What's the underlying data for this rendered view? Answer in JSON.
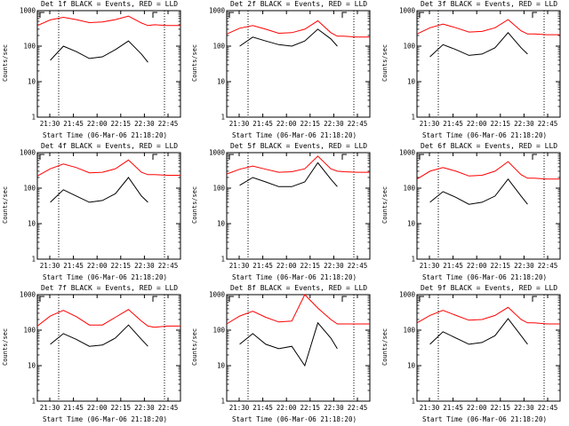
{
  "chart_data": [
    {
      "type": "line",
      "title": "Det 1f BLACK = Events, RED = LLD",
      "xlabel": "Start Time (06-Mar-06 21:18:20)",
      "ylabel": "Counts/sec",
      "x_ticks": [
        "21:30",
        "21:45",
        "22:00",
        "22:15",
        "22:30",
        "22:45"
      ],
      "y_ticks": [
        "1",
        "10",
        "100",
        "1000"
      ],
      "y_scale": "log",
      "ylim": [
        1,
        1000
      ],
      "x": [
        0,
        10,
        20,
        30,
        40,
        50,
        60,
        70,
        80,
        85,
        90,
        100,
        110
      ],
      "series": [
        {
          "name": "BLACK = Events",
          "values": [
            null,
            40,
            100,
            70,
            45,
            50,
            80,
            140,
            60,
            35,
            null,
            null,
            null
          ]
        },
        {
          "name": "RED = LLD",
          "values": [
            380,
            550,
            650,
            560,
            460,
            480,
            560,
            700,
            450,
            380,
            400,
            380,
            380
          ]
        }
      ]
    },
    {
      "type": "line",
      "title": "Det 2f BLACK = Events, RED = LLD",
      "xlabel": "Start Time (06-Mar-06 21:18:20)",
      "ylabel": "Counts/sec",
      "x_ticks": [
        "21:30",
        "21:45",
        "22:00",
        "22:15",
        "22:30",
        "22:45"
      ],
      "y_ticks": [
        "1",
        "10",
        "100",
        "1000"
      ],
      "y_scale": "log",
      "ylim": [
        1,
        1000
      ],
      "x": [
        0,
        10,
        20,
        30,
        40,
        50,
        60,
        70,
        80,
        85,
        90,
        100,
        110
      ],
      "series": [
        {
          "name": "BLACK = Events",
          "values": [
            null,
            100,
            180,
            140,
            110,
            100,
            140,
            300,
            160,
            100,
            null,
            null,
            null
          ]
        },
        {
          "name": "RED = LLD",
          "values": [
            220,
            320,
            380,
            300,
            230,
            240,
            300,
            520,
            240,
            190,
            190,
            180,
            180
          ]
        }
      ]
    },
    {
      "type": "line",
      "title": "Det 3f BLACK = Events, RED = LLD",
      "xlabel": "Start Time (06-Mar-06 21:18:20)",
      "ylabel": "Counts/sec",
      "x_ticks": [
        "21:30",
        "21:45",
        "22:00",
        "22:15",
        "22:30",
        "22:45"
      ],
      "y_ticks": [
        "1",
        "10",
        "100",
        "1000"
      ],
      "y_scale": "log",
      "ylim": [
        1,
        1000
      ],
      "x": [
        0,
        10,
        20,
        30,
        40,
        50,
        60,
        70,
        80,
        85,
        90,
        100,
        110
      ],
      "series": [
        {
          "name": "BLACK = Events",
          "values": [
            null,
            50,
            110,
            80,
            55,
            60,
            90,
            240,
            90,
            60,
            null,
            null,
            null
          ]
        },
        {
          "name": "RED = LLD",
          "values": [
            220,
            330,
            420,
            330,
            250,
            260,
            330,
            560,
            270,
            220,
            220,
            210,
            210
          ]
        }
      ]
    },
    {
      "type": "line",
      "title": "Det 4f BLACK = Events, RED = LLD",
      "xlabel": "Start Time (06-Mar-06 21:18:20)",
      "ylabel": "Counts/sec",
      "x_ticks": [
        "21:30",
        "21:45",
        "22:00",
        "22:15",
        "22:30",
        "22:45"
      ],
      "y_ticks": [
        "1",
        "10",
        "100",
        "1000"
      ],
      "y_scale": "log",
      "ylim": [
        1,
        1000
      ],
      "x": [
        0,
        10,
        20,
        30,
        40,
        50,
        60,
        70,
        80,
        85,
        90,
        100,
        110
      ],
      "series": [
        {
          "name": "BLACK = Events",
          "values": [
            null,
            40,
            90,
            60,
            40,
            45,
            70,
            200,
            60,
            40,
            null,
            null,
            null
          ]
        },
        {
          "name": "RED = LLD",
          "values": [
            220,
            350,
            480,
            380,
            270,
            280,
            350,
            620,
            280,
            240,
            240,
            230,
            230
          ]
        }
      ]
    },
    {
      "type": "line",
      "title": "Det 5f BLACK = Events, RED = LLD",
      "xlabel": "Start Time (06-Mar-06 21:18:20)",
      "ylabel": "Counts/sec",
      "x_ticks": [
        "21:30",
        "21:45",
        "22:00",
        "22:15",
        "22:30",
        "22:45"
      ],
      "y_ticks": [
        "1",
        "10",
        "100",
        "1000"
      ],
      "y_scale": "log",
      "ylim": [
        1,
        1000
      ],
      "x": [
        0,
        10,
        20,
        30,
        40,
        50,
        60,
        70,
        80,
        85,
        90,
        100,
        110
      ],
      "series": [
        {
          "name": "BLACK = Events",
          "values": [
            null,
            120,
            200,
            150,
            110,
            110,
            150,
            520,
            180,
            110,
            null,
            null,
            null
          ]
        },
        {
          "name": "RED = LLD",
          "values": [
            250,
            340,
            420,
            340,
            280,
            290,
            350,
            800,
            350,
            300,
            290,
            280,
            280
          ]
        }
      ]
    },
    {
      "type": "line",
      "title": "Det 6f BLACK = Events, RED = LLD",
      "xlabel": "Start Time (06-Mar-06 21:18:20)",
      "ylabel": "Counts/sec",
      "x_ticks": [
        "21:30",
        "21:45",
        "22:00",
        "22:15",
        "22:30",
        "22:45"
      ],
      "y_ticks": [
        "1",
        "10",
        "100",
        "1000"
      ],
      "y_scale": "log",
      "ylim": [
        1,
        1000
      ],
      "x": [
        0,
        10,
        20,
        30,
        40,
        50,
        60,
        70,
        80,
        85,
        90,
        100,
        110
      ],
      "series": [
        {
          "name": "BLACK = Events",
          "values": [
            null,
            40,
            80,
            55,
            35,
            40,
            60,
            180,
            60,
            35,
            null,
            null,
            null
          ]
        },
        {
          "name": "RED = LLD",
          "values": [
            180,
            300,
            380,
            300,
            220,
            230,
            300,
            560,
            240,
            190,
            190,
            180,
            180
          ]
        }
      ]
    },
    {
      "type": "line",
      "title": "Det 7f BLACK = Events, RED = LLD",
      "xlabel": "Start Time (06-Mar-06 21:18:20)",
      "ylabel": "Counts/sec",
      "x_ticks": [
        "21:30",
        "21:45",
        "22:00",
        "22:15",
        "22:30",
        "22:45"
      ],
      "y_ticks": [
        "1",
        "10",
        "100",
        "1000"
      ],
      "y_scale": "log",
      "ylim": [
        1,
        1000
      ],
      "x": [
        0,
        10,
        20,
        30,
        40,
        50,
        60,
        70,
        80,
        85,
        90,
        100,
        110
      ],
      "series": [
        {
          "name": "BLACK = Events",
          "values": [
            null,
            40,
            80,
            55,
            35,
            38,
            60,
            140,
            55,
            35,
            null,
            null,
            null
          ]
        },
        {
          "name": "RED = LLD",
          "values": [
            130,
            250,
            360,
            240,
            140,
            140,
            230,
            380,
            180,
            130,
            120,
            130,
            130
          ]
        }
      ]
    },
    {
      "type": "line",
      "title": "Det 8f BLACK = Events, RED = LLD",
      "xlabel": "Start Time (06-Mar-06 21:18:20)",
      "ylabel": "Counts/sec",
      "x_ticks": [
        "21:30",
        "21:45",
        "22:00",
        "22:15",
        "22:30",
        "22:45"
      ],
      "y_ticks": [
        "1",
        "10",
        "100",
        "1000"
      ],
      "y_scale": "log",
      "ylim": [
        1,
        1000
      ],
      "x": [
        0,
        10,
        20,
        30,
        40,
        50,
        60,
        70,
        80,
        85,
        90,
        100,
        110
      ],
      "series": [
        {
          "name": "BLACK = Events",
          "values": [
            null,
            40,
            80,
            40,
            30,
            35,
            10,
            160,
            60,
            30,
            null,
            null,
            null
          ]
        },
        {
          "name": "RED = LLD",
          "values": [
            150,
            250,
            340,
            230,
            170,
            180,
            1000,
            420,
            200,
            150,
            150,
            150,
            150
          ]
        }
      ]
    },
    {
      "type": "line",
      "title": "Det 9f BLACK = Events, RED = LLD",
      "xlabel": "Start Time (06-Mar-06 21:18:20)",
      "ylabel": "Counts/sec",
      "x_ticks": [
        "21:30",
        "21:45",
        "22:00",
        "22:15",
        "22:30",
        "22:45"
      ],
      "y_ticks": [
        "1",
        "10",
        "100",
        "1000"
      ],
      "y_scale": "log",
      "ylim": [
        1,
        1000
      ],
      "x": [
        0,
        10,
        20,
        30,
        40,
        50,
        60,
        70,
        80,
        85,
        90,
        100,
        110
      ],
      "series": [
        {
          "name": "BLACK = Events",
          "values": [
            null,
            40,
            90,
            60,
            40,
            45,
            70,
            210,
            70,
            40,
            null,
            null,
            null
          ]
        },
        {
          "name": "RED = LLD",
          "values": [
            160,
            260,
            360,
            260,
            190,
            200,
            260,
            440,
            200,
            160,
            160,
            150,
            150
          ]
        }
      ]
    }
  ]
}
